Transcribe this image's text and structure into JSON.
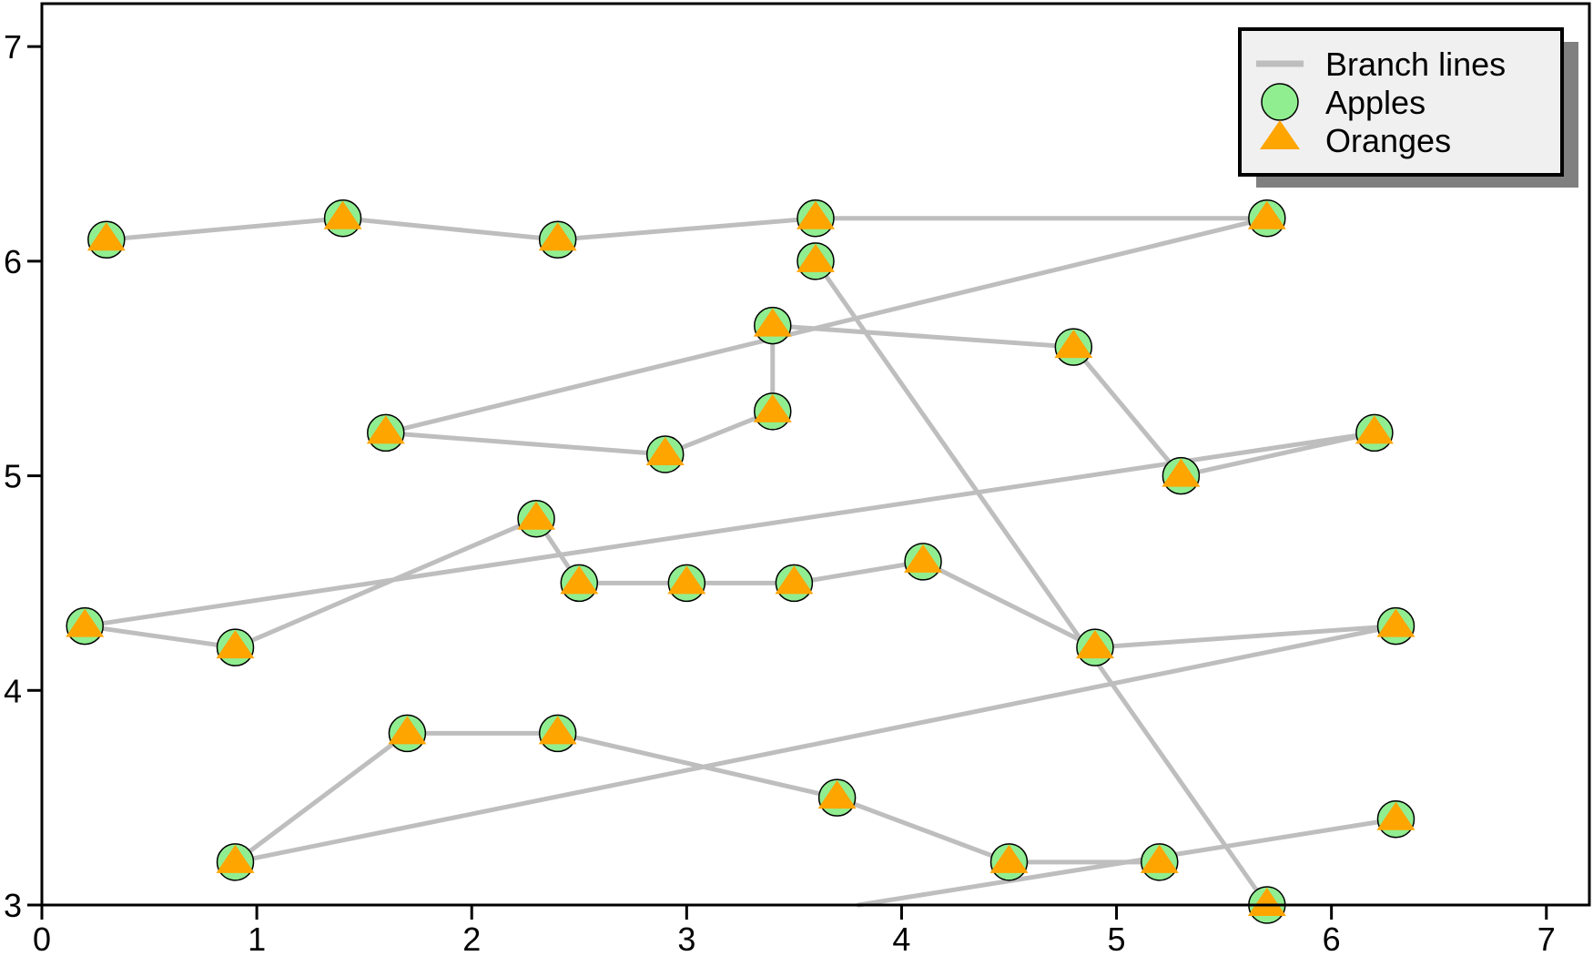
{
  "chart_data": {
    "type": "scatter",
    "title": "",
    "xlabel": "",
    "ylabel": "",
    "xlim": [
      0,
      7.2
    ],
    "ylim": [
      3,
      7.2
    ],
    "x_ticks": [
      0,
      1,
      2,
      3,
      4,
      5,
      6,
      7
    ],
    "y_ticks": [
      3,
      4,
      5,
      6,
      7
    ],
    "x_tick_labels": [
      "0",
      "1",
      "2",
      "3",
      "4",
      "5",
      "6",
      "7"
    ],
    "y_tick_labels": [
      "3",
      "4",
      "5",
      "6",
      "7"
    ],
    "grid": false,
    "legend_position": "top-right",
    "series": [
      {
        "name": "Branch lines",
        "kind": "line",
        "color": "#bebebe",
        "x": [
          0.3,
          1.4,
          2.4,
          3.6,
          5.7,
          1.6,
          2.9,
          3.4,
          3.4,
          4.8,
          5.3,
          6.2,
          0.2,
          0.9,
          2.3,
          2.5,
          3.0,
          3.5,
          4.1,
          4.9,
          6.3,
          0.9,
          1.7,
          2.4,
          3.7,
          4.5,
          5.2
        ],
        "y": [
          6.1,
          6.2,
          6.1,
          6.2,
          6.2,
          5.2,
          5.1,
          5.3,
          5.7,
          5.6,
          5.0,
          5.2,
          4.3,
          4.2,
          4.8,
          4.5,
          4.5,
          4.5,
          4.6,
          4.2,
          4.3,
          3.2,
          3.8,
          3.8,
          3.5,
          3.2,
          3.2
        ]
      },
      {
        "name": "Branch lines",
        "kind": "line",
        "color": "#bebebe",
        "x": [
          3.6,
          5.7
        ],
        "y": [
          6.0,
          3.0
        ]
      },
      {
        "name": "Branch lines",
        "kind": "line",
        "color": "#bebebe",
        "x": [
          3.8,
          6.3
        ],
        "y": [
          3.0,
          3.4
        ]
      },
      {
        "name": "Apples",
        "kind": "circle",
        "color": "#90ee90",
        "x": [
          0.3,
          1.4,
          2.4,
          3.6,
          5.7,
          3.6,
          3.4,
          4.8,
          1.6,
          2.9,
          3.4,
          5.3,
          6.2,
          2.3,
          2.5,
          3.0,
          3.5,
          4.1,
          0.2,
          0.9,
          4.9,
          6.3,
          1.7,
          2.4,
          3.7,
          0.9,
          4.5,
          5.2,
          6.3,
          5.7
        ],
        "y": [
          6.1,
          6.2,
          6.1,
          6.2,
          6.2,
          6.0,
          5.7,
          5.6,
          5.2,
          5.1,
          5.3,
          5.0,
          5.2,
          4.8,
          4.5,
          4.5,
          4.5,
          4.6,
          4.3,
          4.2,
          4.2,
          4.3,
          3.8,
          3.8,
          3.5,
          3.2,
          3.2,
          3.2,
          3.4,
          3.0
        ]
      },
      {
        "name": "Oranges",
        "kind": "triangle",
        "color": "#ffa500",
        "x": [
          0.3,
          1.4,
          2.4,
          3.6,
          5.7,
          3.6,
          3.4,
          4.8,
          1.6,
          2.9,
          3.4,
          5.3,
          6.2,
          2.3,
          2.5,
          3.0,
          3.5,
          4.1,
          0.2,
          0.9,
          4.9,
          6.3,
          1.7,
          2.4,
          3.7,
          0.9,
          4.5,
          5.2,
          6.3,
          5.7
        ],
        "y": [
          6.1,
          6.2,
          6.1,
          6.2,
          6.2,
          6.0,
          5.7,
          5.6,
          5.2,
          5.1,
          5.3,
          5.0,
          5.2,
          4.8,
          4.5,
          4.5,
          4.5,
          4.6,
          4.3,
          4.2,
          4.2,
          4.3,
          3.8,
          3.8,
          3.5,
          3.2,
          3.2,
          3.2,
          3.4,
          3.0
        ]
      }
    ],
    "legend": {
      "entries": [
        "Branch lines",
        "Apples",
        "Oranges"
      ],
      "background": "#f0f0f0",
      "shadow": "#808080"
    }
  }
}
